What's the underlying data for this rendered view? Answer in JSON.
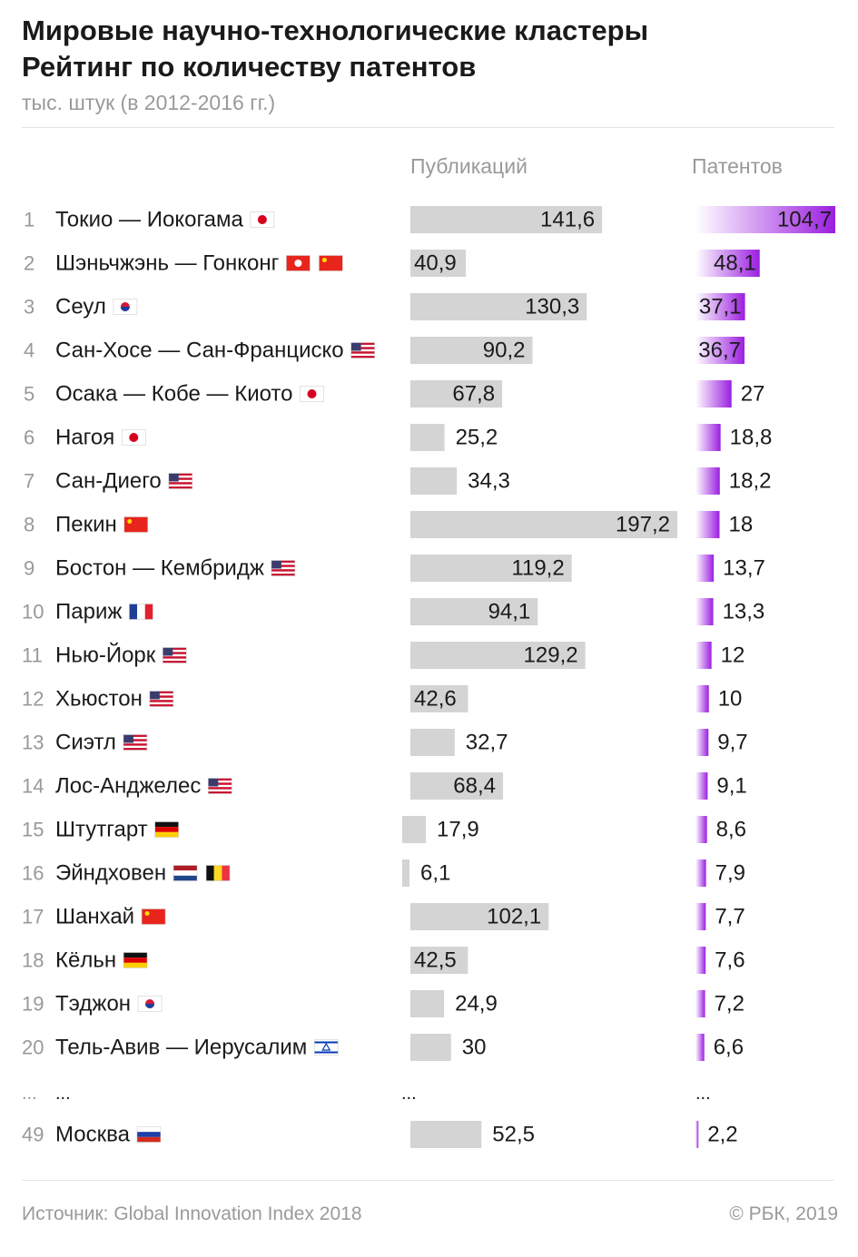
{
  "header": {
    "title_line1": "Мировые научно-технологические кластеры",
    "title_line2": "Рейтинг по количеству патентов",
    "subtitle": "тыс. штук (в 2012-2016 гг.)"
  },
  "columns": {
    "publications": "Публикаций",
    "patents": "Патентов"
  },
  "chart_data": {
    "type": "bar",
    "title": "Мировые научно-технологические кластеры",
    "subtitle": "Рейтинг по количеству патентов",
    "units": "тыс. штук (в 2012-2016 гг.)",
    "categories": [
      "Токио — Иокогама",
      "Шэньчжэнь — Гонконг",
      "Сеул",
      "Сан-Хосе — Сан-Франциско",
      "Осака — Кобе — Киото",
      "Нагоя",
      "Сан-Диего",
      "Пекин",
      "Бостон — Кембридж",
      "Париж",
      "Нью-Йорк",
      "Хьюстон",
      "Сиэтл",
      "Лос-Анджелес",
      "Штутгарт",
      "Эйндховен",
      "Шанхай",
      "Кёльн",
      "Тэджон",
      "Тель-Авив — Иерусалим",
      "Москва"
    ],
    "ranks": [
      "1",
      "2",
      "3",
      "4",
      "5",
      "6",
      "7",
      "8",
      "9",
      "10",
      "11",
      "12",
      "13",
      "14",
      "15",
      "16",
      "17",
      "18",
      "19",
      "20",
      "49"
    ],
    "flags": [
      [
        "JP"
      ],
      [
        "HK",
        "CN"
      ],
      [
        "KR"
      ],
      [
        "US"
      ],
      [
        "JP"
      ],
      [
        "JP"
      ],
      [
        "US"
      ],
      [
        "CN"
      ],
      [
        "US"
      ],
      [
        "FR"
      ],
      [
        "US"
      ],
      [
        "US"
      ],
      [
        "US"
      ],
      [
        "US"
      ],
      [
        "DE"
      ],
      [
        "NL",
        "BE"
      ],
      [
        "CN"
      ],
      [
        "DE"
      ],
      [
        "KR"
      ],
      [
        "IL"
      ],
      [
        "RU"
      ]
    ],
    "series": [
      {
        "name": "Публикаций",
        "color": "#d4d4d4",
        "values": [
          141.6,
          40.9,
          130.3,
          90.2,
          67.8,
          25.2,
          34.3,
          197.2,
          119.2,
          94.1,
          129.2,
          42.6,
          32.7,
          68.4,
          17.9,
          6.1,
          102.1,
          42.5,
          24.9,
          30,
          52.5
        ],
        "labels": [
          "141,6",
          "40,9",
          "130,3",
          "90,2",
          "67,8",
          "25,2",
          "34,3",
          "197,2",
          "119,2",
          "94,1",
          "129,2",
          "42,6",
          "32,7",
          "68,4",
          "17,9",
          "6,1",
          "102,1",
          "42,5",
          "24,9",
          "30",
          "52,5"
        ]
      },
      {
        "name": "Патентов",
        "color": "#9b1fe0",
        "values": [
          104.7,
          48.1,
          37.1,
          36.7,
          27,
          18.8,
          18.2,
          18,
          13.7,
          13.3,
          12,
          10,
          9.7,
          9.1,
          8.6,
          7.9,
          7.7,
          7.6,
          7.2,
          6.6,
          2.2
        ],
        "labels": [
          "104,7",
          "48,1",
          "37,1",
          "36,7",
          "27",
          "18,8",
          "18,2",
          "18",
          "13,7",
          "13,3",
          "12",
          "10",
          "9,7",
          "9,1",
          "8,6",
          "7,9",
          "7,7",
          "7,6",
          "7,2",
          "6,6",
          "2,2"
        ]
      }
    ],
    "ellipsis": "..."
  },
  "footer": {
    "source": "Источник: Global Innovation Index 2018",
    "copyright": "© РБК, 2019"
  }
}
